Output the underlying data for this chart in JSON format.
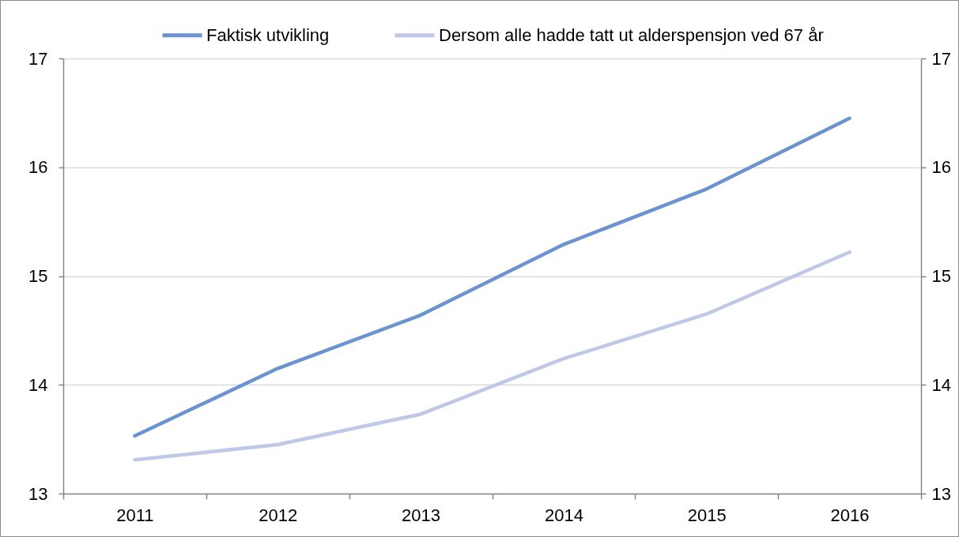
{
  "chart_data": {
    "type": "line",
    "categories": [
      "2011",
      "2012",
      "2013",
      "2014",
      "2015",
      "2016"
    ],
    "series": [
      {
        "name": "Faktisk utvikling",
        "color": "#6b93cf",
        "values": [
          13.53,
          14.15,
          14.64,
          15.29,
          15.8,
          16.45
        ]
      },
      {
        "name": "Dersom alle hadde tatt ut alderspensjon ved 67 år",
        "color": "#bfc8e7",
        "values": [
          13.31,
          13.45,
          13.73,
          14.24,
          14.65,
          15.22
        ]
      }
    ],
    "ylim": [
      13,
      17
    ],
    "yticks": [
      13,
      14,
      15,
      16,
      17
    ],
    "y2lim": [
      13,
      17
    ],
    "y2ticks": [
      13,
      14,
      15,
      16,
      17
    ],
    "grid": "y",
    "legend": "top"
  }
}
